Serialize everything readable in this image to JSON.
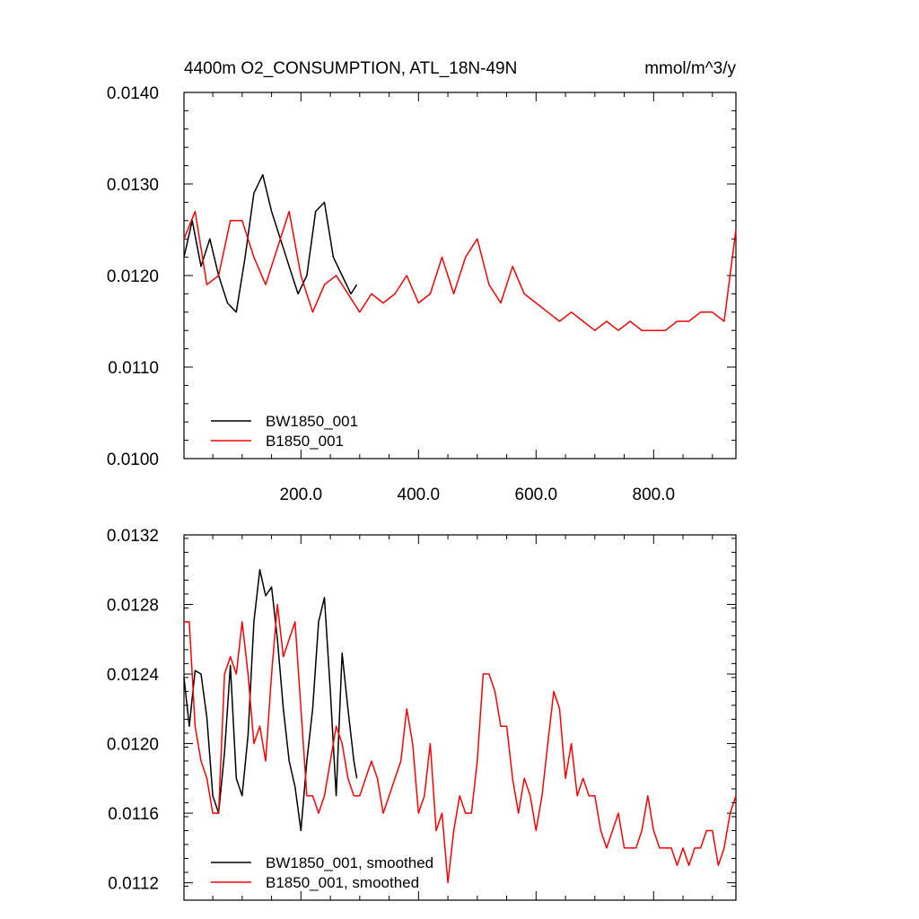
{
  "chart_data": [
    {
      "type": "line",
      "title": "4400m O2_CONSUMPTION, ATL_18N-49N",
      "units": "mmol/m^3/y",
      "xlabel": "",
      "ylabel": "",
      "xlim": [
        1,
        940
      ],
      "ylim": [
        0.01,
        0.014
      ],
      "xticks": [
        200,
        400,
        600,
        800
      ],
      "xtick_labels": [
        "200.0",
        "400.0",
        "600.0",
        "800.0"
      ],
      "yticks": [
        0.01,
        0.011,
        0.012,
        0.013,
        0.014
      ],
      "ytick_labels": [
        "0.0100",
        "0.0110",
        "0.0120",
        "0.0130",
        "0.0140"
      ],
      "legend_position": "bottom-left",
      "series": [
        {
          "name": "BW1850_001",
          "color": "#000000",
          "x": [
            1,
            15,
            30,
            45,
            60,
            75,
            90,
            105,
            120,
            135,
            150,
            165,
            180,
            195,
            210,
            225,
            240,
            255,
            270,
            285,
            295
          ],
          "values": [
            0.0122,
            0.0126,
            0.0121,
            0.0124,
            0.012,
            0.0117,
            0.0116,
            0.0122,
            0.0129,
            0.0131,
            0.0127,
            0.0124,
            0.0121,
            0.0118,
            0.012,
            0.0127,
            0.0128,
            0.0122,
            0.012,
            0.0118,
            0.0119
          ]
        },
        {
          "name": "B1850_001",
          "color": "#ff0000",
          "x": [
            1,
            20,
            40,
            60,
            80,
            100,
            120,
            140,
            160,
            180,
            200,
            220,
            240,
            260,
            280,
            300,
            320,
            340,
            360,
            380,
            400,
            420,
            440,
            460,
            480,
            500,
            520,
            540,
            560,
            580,
            600,
            620,
            640,
            660,
            680,
            700,
            720,
            740,
            760,
            780,
            800,
            820,
            840,
            860,
            880,
            900,
            920,
            940
          ],
          "values": [
            0.0124,
            0.0127,
            0.0119,
            0.012,
            0.0126,
            0.0126,
            0.0122,
            0.0119,
            0.0123,
            0.0127,
            0.012,
            0.0116,
            0.0119,
            0.012,
            0.0118,
            0.0116,
            0.0118,
            0.0117,
            0.0118,
            0.012,
            0.0117,
            0.0118,
            0.0122,
            0.0118,
            0.0122,
            0.0124,
            0.0119,
            0.0117,
            0.0121,
            0.0118,
            0.0117,
            0.0116,
            0.0115,
            0.0116,
            0.0115,
            0.0114,
            0.0115,
            0.0114,
            0.0115,
            0.0114,
            0.0114,
            0.0114,
            0.0115,
            0.0115,
            0.0116,
            0.0116,
            0.0115,
            0.0125
          ]
        }
      ]
    },
    {
      "type": "line",
      "title": "",
      "xlabel": "",
      "ylabel": "",
      "xlim": [
        1,
        940
      ],
      "ylim": [
        0.0111,
        0.0132
      ],
      "xticks": [
        200,
        400,
        600,
        800
      ],
      "xtick_labels": [],
      "yticks": [
        0.0112,
        0.0116,
        0.012,
        0.0124,
        0.0128,
        0.0132
      ],
      "ytick_labels": [
        "0.0112",
        "0.0116",
        "0.0120",
        "0.0124",
        "0.0128",
        "0.0132"
      ],
      "legend_position": "bottom-left",
      "series": [
        {
          "name": "BW1850_001, smoothed",
          "color": "#000000",
          "x": [
            1,
            10,
            20,
            30,
            40,
            50,
            60,
            70,
            80,
            90,
            100,
            110,
            120,
            130,
            140,
            150,
            160,
            170,
            180,
            190,
            200,
            210,
            220,
            230,
            240,
            250,
            260,
            270,
            280,
            290,
            295
          ],
          "values": [
            0.01238,
            0.0121,
            0.01242,
            0.0124,
            0.01215,
            0.0117,
            0.0116,
            0.01195,
            0.01245,
            0.0118,
            0.0117,
            0.01205,
            0.0127,
            0.013,
            0.01285,
            0.0129,
            0.0126,
            0.0122,
            0.0119,
            0.01175,
            0.0115,
            0.0119,
            0.0122,
            0.0127,
            0.01284,
            0.0123,
            0.0117,
            0.01252,
            0.0122,
            0.0119,
            0.0118
          ]
        },
        {
          "name": "B1850_001, smoothed",
          "color": "#ff0000",
          "x": [
            1,
            10,
            20,
            30,
            40,
            50,
            60,
            70,
            80,
            90,
            100,
            110,
            120,
            130,
            140,
            150,
            160,
            170,
            180,
            190,
            200,
            210,
            220,
            230,
            240,
            250,
            260,
            270,
            280,
            290,
            300,
            310,
            320,
            330,
            340,
            350,
            360,
            370,
            380,
            390,
            400,
            410,
            420,
            430,
            440,
            450,
            460,
            470,
            480,
            490,
            500,
            510,
            520,
            530,
            540,
            550,
            560,
            570,
            580,
            590,
            600,
            610,
            620,
            630,
            640,
            650,
            660,
            670,
            680,
            690,
            700,
            710,
            720,
            730,
            740,
            750,
            760,
            770,
            780,
            790,
            800,
            810,
            820,
            830,
            840,
            850,
            860,
            870,
            880,
            890,
            900,
            910,
            920,
            930,
            940
          ],
          "values": [
            0.0127,
            0.0127,
            0.0121,
            0.0119,
            0.0118,
            0.0116,
            0.0116,
            0.0124,
            0.0125,
            0.0124,
            0.0127,
            0.0124,
            0.012,
            0.0121,
            0.0119,
            0.0124,
            0.0128,
            0.0125,
            0.0126,
            0.0127,
            0.0122,
            0.0117,
            0.0117,
            0.0116,
            0.0117,
            0.0119,
            0.0121,
            0.012,
            0.0118,
            0.0117,
            0.0117,
            0.0118,
            0.0119,
            0.0118,
            0.0116,
            0.0117,
            0.0118,
            0.0119,
            0.0122,
            0.012,
            0.0116,
            0.0117,
            0.012,
            0.0115,
            0.0116,
            0.0112,
            0.0115,
            0.0117,
            0.0116,
            0.0116,
            0.0119,
            0.0124,
            0.0124,
            0.0123,
            0.0121,
            0.0121,
            0.0118,
            0.0116,
            0.0118,
            0.0117,
            0.0115,
            0.0117,
            0.012,
            0.0123,
            0.0122,
            0.0118,
            0.012,
            0.0117,
            0.0118,
            0.0117,
            0.0117,
            0.0115,
            0.0114,
            0.0115,
            0.0116,
            0.0114,
            0.0114,
            0.0114,
            0.0115,
            0.0117,
            0.0115,
            0.0114,
            0.0114,
            0.0114,
            0.0113,
            0.0114,
            0.0113,
            0.0114,
            0.0114,
            0.0115,
            0.0115,
            0.0113,
            0.0114,
            0.0116,
            0.0117
          ]
        }
      ]
    }
  ]
}
